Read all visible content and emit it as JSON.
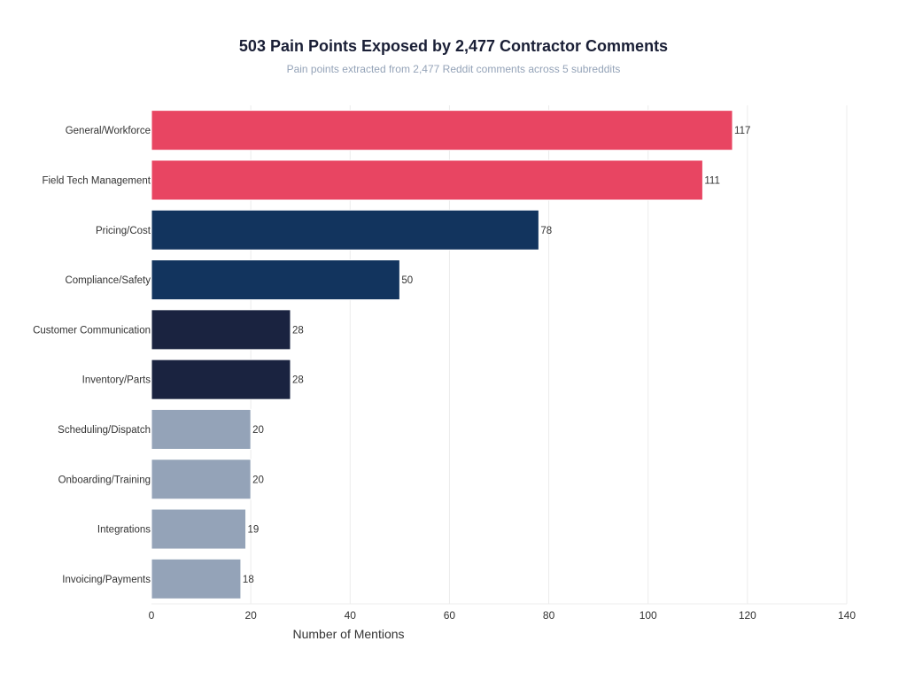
{
  "chart_data": {
    "type": "bar",
    "orientation": "horizontal",
    "title": "503 Pain Points Exposed by 2,477 Contractor Comments",
    "subtitle": "Pain points extracted from 2,477 Reddit comments across 5 subreddits",
    "xlabel": "Number of Mentions",
    "ylabel": "",
    "xlim": [
      0,
      140
    ],
    "xticks": [
      0,
      20,
      40,
      60,
      80,
      100,
      120,
      140
    ],
    "grid": true,
    "categories": [
      "General/Workforce",
      "Field Tech Management",
      "Pricing/Cost",
      "Compliance/Safety",
      "Customer Communication",
      "Inventory/Parts",
      "Scheduling/Dispatch",
      "Onboarding/Training",
      "Integrations",
      "Invoicing/Payments"
    ],
    "values": [
      117,
      111,
      78,
      50,
      28,
      28,
      20,
      20,
      19,
      18
    ],
    "colors": [
      "#e84562",
      "#e84562",
      "#12345e",
      "#12345e",
      "#1a2340",
      "#1a2340",
      "#94a3b8",
      "#94a3b8",
      "#94a3b8",
      "#94a3b8"
    ]
  }
}
